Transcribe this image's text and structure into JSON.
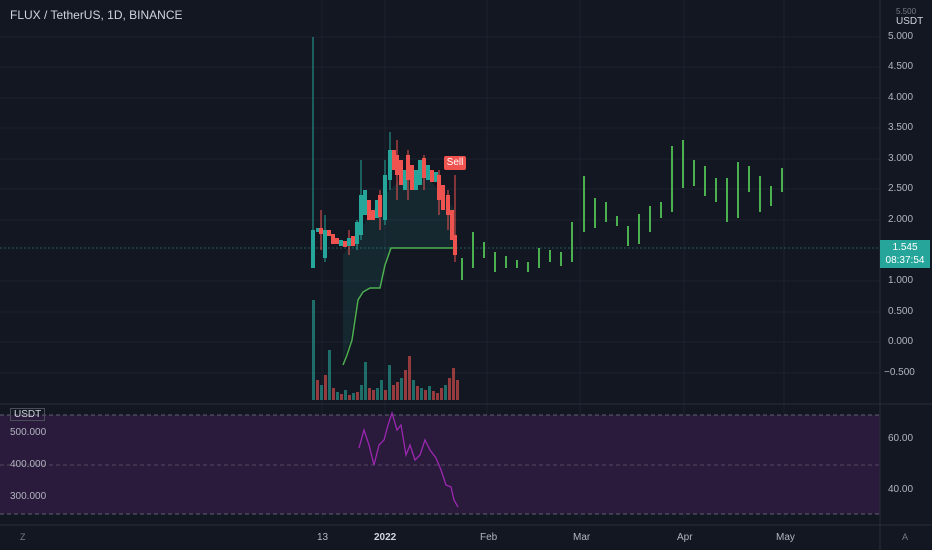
{
  "symbol": {
    "title": "FLUX / TetherUS, 1D, BINANCE"
  },
  "price_axis": {
    "unit_top": "5.500",
    "unit": "USDT",
    "labels": [
      "5.000",
      "4.500",
      "4.000",
      "3.500",
      "3.000",
      "2.500",
      "2.000",
      "1.500",
      "1.000",
      "0.500",
      "0.000",
      "−0.500"
    ],
    "current_price": "1.545",
    "countdown": "08:37:54"
  },
  "signal": {
    "label": "Sell"
  },
  "rsi": {
    "unit": "USDT",
    "left_labels": [
      "500.000",
      "400.000",
      "300.000"
    ],
    "right_labels": [
      "60.00",
      "40.00"
    ]
  },
  "time_axis": {
    "labels": [
      "13",
      "2022",
      "Feb",
      "Mar",
      "Apr",
      "May"
    ],
    "left_icon": "Z",
    "right_icon": "A"
  },
  "colors": {
    "background": "#131722",
    "up": "#26a69a",
    "down": "#ef5350",
    "projection": "#4caf50",
    "rsi_line": "#9c27b0",
    "rsi_band": "#2a1b3d"
  }
}
